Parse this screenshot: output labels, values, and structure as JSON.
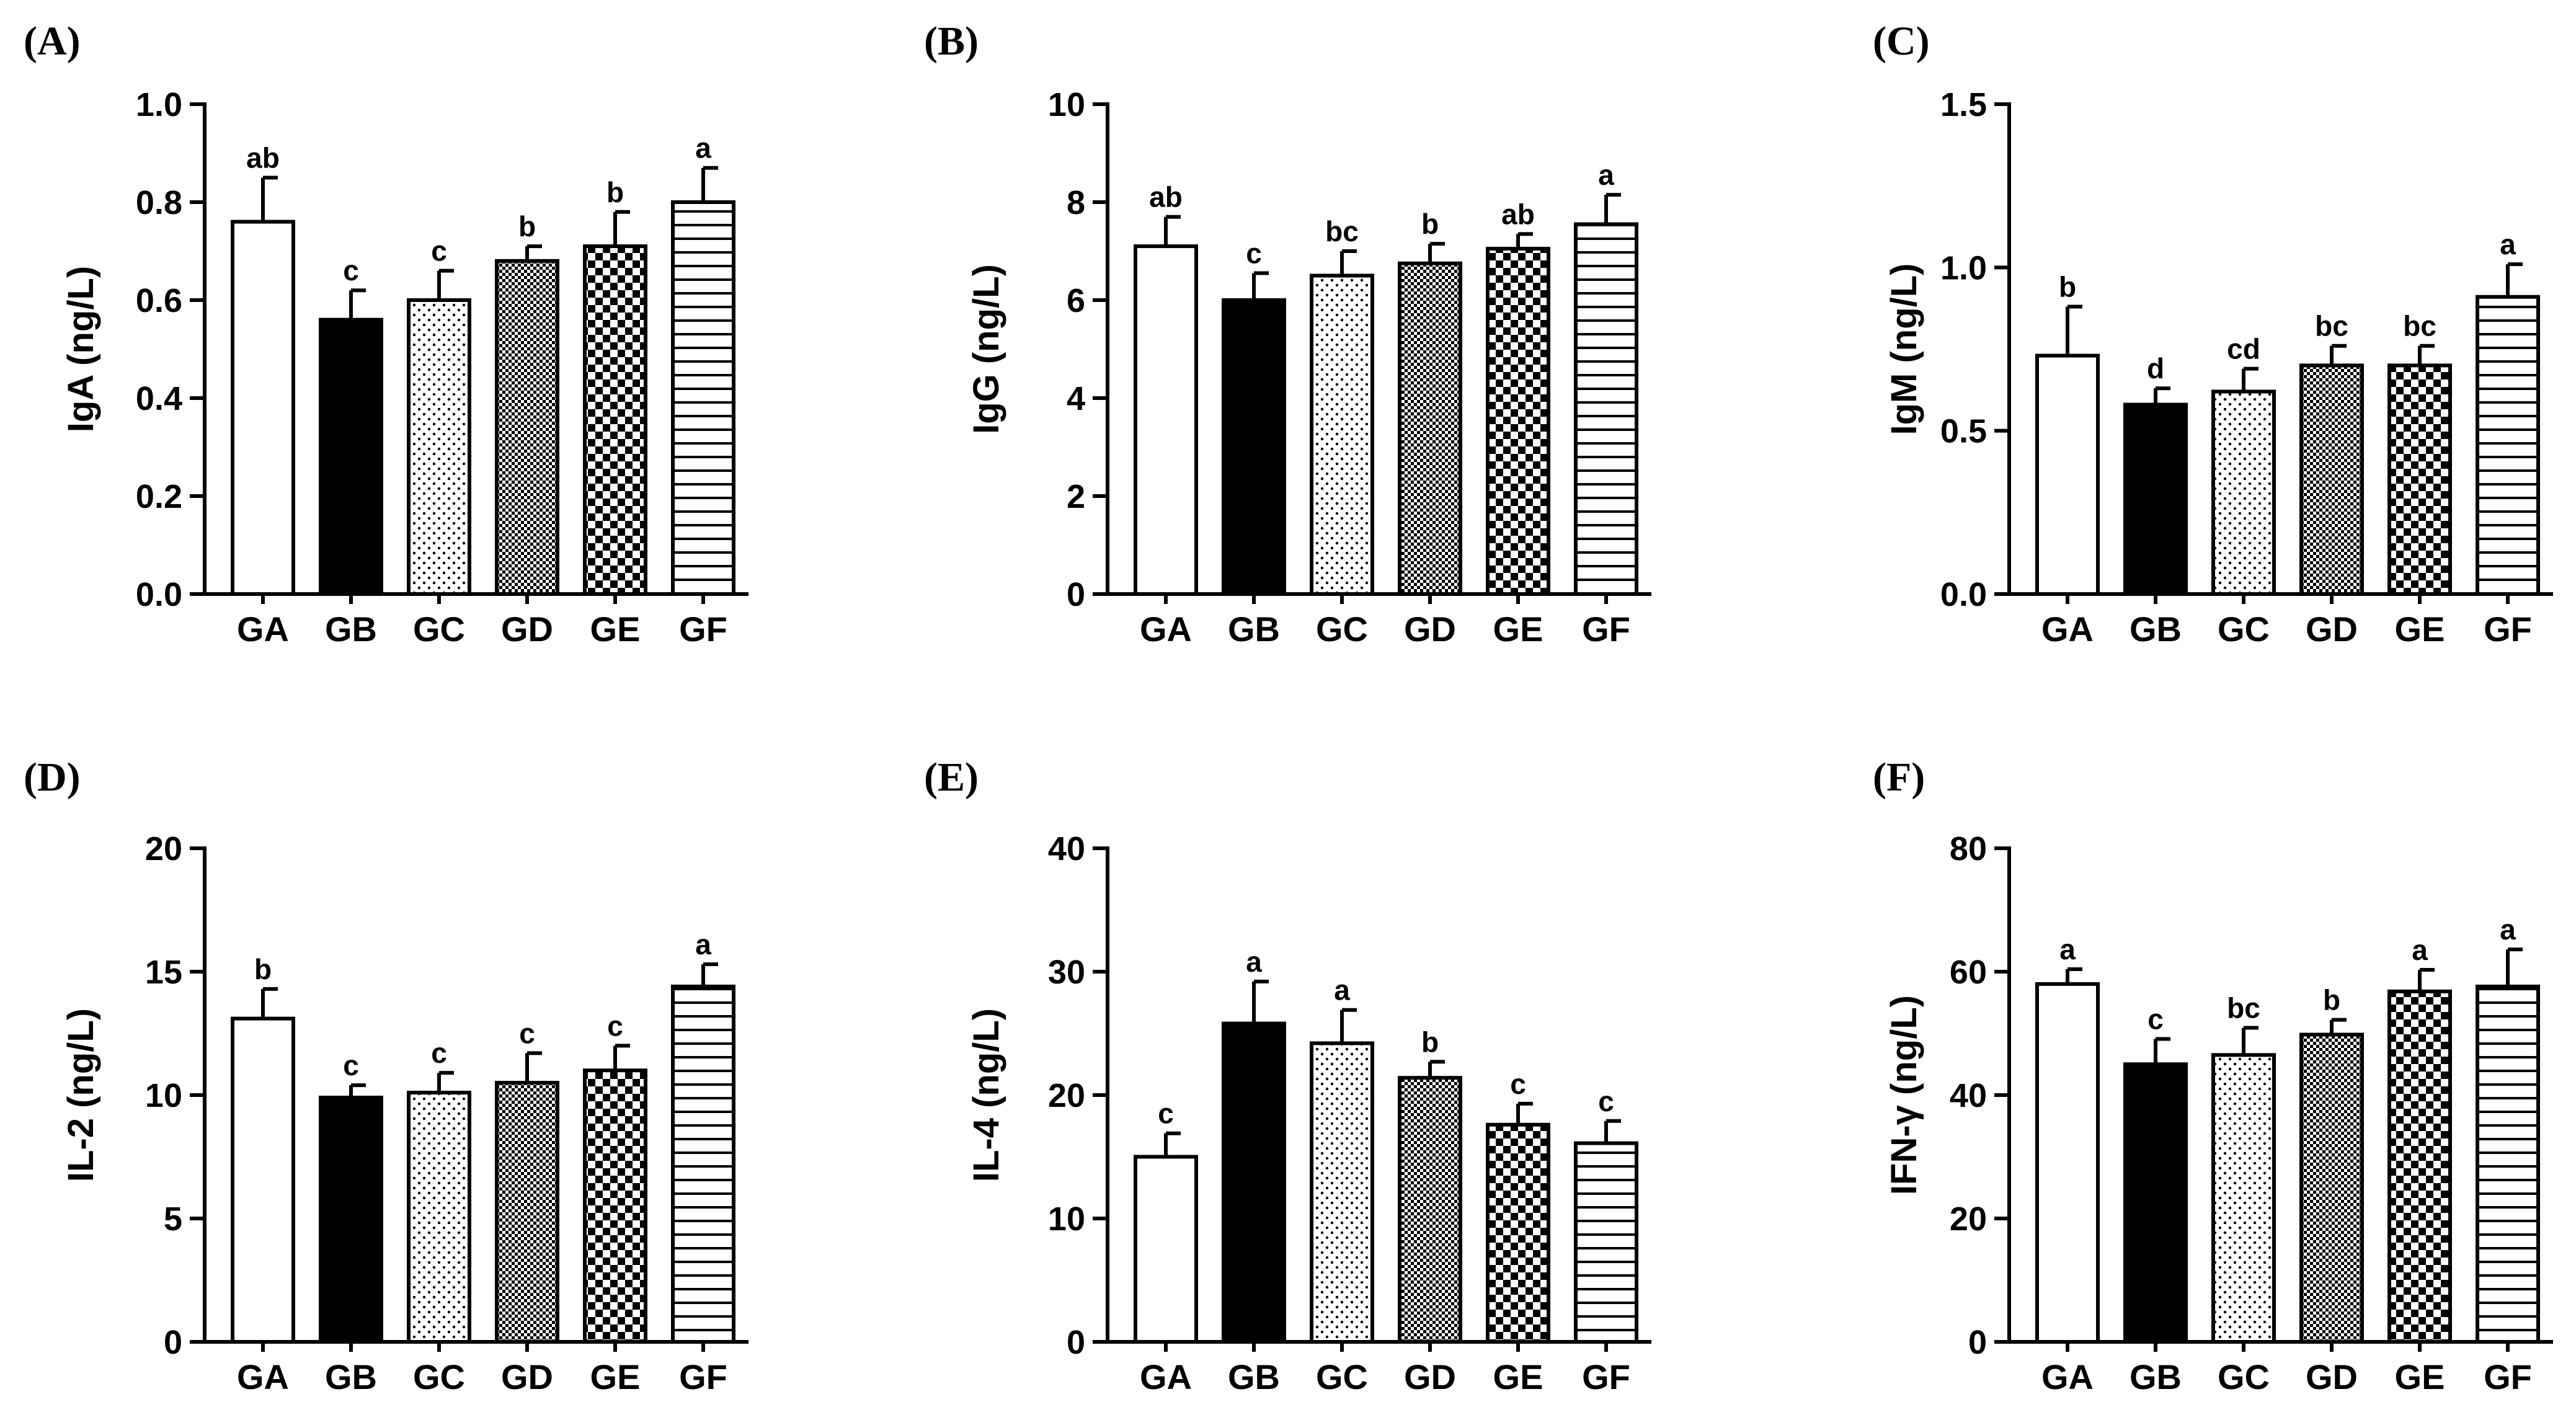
{
  "groups_legend": [
    "GA",
    "GB",
    "GC",
    "GD",
    "GE",
    "GF"
  ],
  "chart_data": [
    {
      "panel": "(A)",
      "type": "bar",
      "ylabel": "IgA (ng/L)",
      "categories": [
        "GA",
        "GB",
        "GC",
        "GD",
        "GE",
        "GF"
      ],
      "values": [
        0.76,
        0.56,
        0.6,
        0.68,
        0.71,
        0.8
      ],
      "errors": [
        0.09,
        0.06,
        0.06,
        0.03,
        0.07,
        0.07
      ],
      "letters": [
        "ab",
        "c",
        "c",
        "b",
        "b",
        "a"
      ],
      "ylim": [
        0,
        1.0
      ],
      "yticks": [
        0.0,
        0.2,
        0.4,
        0.6,
        0.8,
        1.0
      ],
      "ytick_labels": [
        "0.0",
        "0.2",
        "0.4",
        "0.6",
        "0.8",
        "1.0"
      ]
    },
    {
      "panel": "(B)",
      "type": "bar",
      "ylabel": "IgG (ng/L)",
      "categories": [
        "GA",
        "GB",
        "GC",
        "GD",
        "GE",
        "GF"
      ],
      "values": [
        7.1,
        6.0,
        6.5,
        6.75,
        7.05,
        7.55
      ],
      "errors": [
        0.6,
        0.55,
        0.5,
        0.4,
        0.3,
        0.6
      ],
      "letters": [
        "ab",
        "c",
        "bc",
        "b",
        "ab",
        "a"
      ],
      "ylim": [
        0,
        10
      ],
      "yticks": [
        0,
        2,
        4,
        6,
        8,
        10
      ],
      "ytick_labels": [
        "0",
        "2",
        "4",
        "6",
        "8",
        "10"
      ]
    },
    {
      "panel": "(C)",
      "type": "bar",
      "ylabel": "IgM (ng/L)",
      "categories": [
        "GA",
        "GB",
        "GC",
        "GD",
        "GE",
        "GF"
      ],
      "values": [
        0.73,
        0.58,
        0.62,
        0.7,
        0.7,
        0.91
      ],
      "errors": [
        0.15,
        0.05,
        0.07,
        0.06,
        0.06,
        0.1
      ],
      "letters": [
        "b",
        "d",
        "cd",
        "bc",
        "bc",
        "a"
      ],
      "ylim": [
        0,
        1.5
      ],
      "yticks": [
        0.0,
        0.5,
        1.0,
        1.5
      ],
      "ytick_labels": [
        "0.0",
        "0.5",
        "1.0",
        "1.5"
      ]
    },
    {
      "panel": "(D)",
      "type": "bar",
      "ylabel": "IL-2 (ng/L)",
      "categories": [
        "GA",
        "GB",
        "GC",
        "GD",
        "GE",
        "GF"
      ],
      "values": [
        13.1,
        9.9,
        10.1,
        10.5,
        11.0,
        14.4
      ],
      "errors": [
        1.2,
        0.5,
        0.8,
        1.2,
        1.0,
        0.9
      ],
      "letters": [
        "b",
        "c",
        "c",
        "c",
        "c",
        "a"
      ],
      "ylim": [
        0,
        20
      ],
      "yticks": [
        0,
        5,
        10,
        15,
        20
      ],
      "ytick_labels": [
        "0",
        "5",
        "10",
        "15",
        "20"
      ]
    },
    {
      "panel": "(E)",
      "type": "bar",
      "ylabel": "IL-4 (ng/L)",
      "categories": [
        "GA",
        "GB",
        "GC",
        "GD",
        "GE",
        "GF"
      ],
      "values": [
        15.0,
        25.8,
        24.2,
        21.4,
        17.6,
        16.1
      ],
      "errors": [
        1.9,
        3.4,
        2.7,
        1.3,
        1.7,
        1.8
      ],
      "letters": [
        "c",
        "a",
        "a",
        "b",
        "c",
        "c"
      ],
      "ylim": [
        0,
        40
      ],
      "yticks": [
        0,
        10,
        20,
        30,
        40
      ],
      "ytick_labels": [
        "0",
        "10",
        "20",
        "30",
        "40"
      ]
    },
    {
      "panel": "(F)",
      "type": "bar",
      "ylabel": "IFN-γ (ng/L)",
      "categories": [
        "GA",
        "GB",
        "GC",
        "GD",
        "GE",
        "GF"
      ],
      "values": [
        58,
        45,
        46.5,
        49.8,
        56.8,
        57.6
      ],
      "errors": [
        2.4,
        4.1,
        4.4,
        2.4,
        3.5,
        6.0
      ],
      "letters": [
        "a",
        "c",
        "bc",
        "b",
        "a",
        "a"
      ],
      "ylim": [
        0,
        80
      ],
      "yticks": [
        0,
        20,
        40,
        60,
        80
      ],
      "ytick_labels": [
        "0",
        "20",
        "40",
        "60",
        "80"
      ]
    }
  ]
}
